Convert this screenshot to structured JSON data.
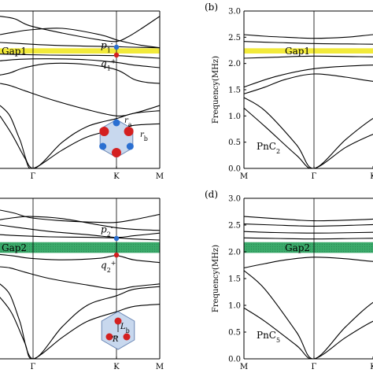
{
  "chart_data": [
    {
      "panel": "a",
      "type": "line",
      "panel_label": "",
      "x_ticks": [
        "Γ",
        "K",
        "M"
      ],
      "ylim": [
        0,
        3.0
      ],
      "gap": {
        "label": "Gap1",
        "from": 2.19,
        "to": 2.29,
        "color": "#f2ea3a"
      },
      "annotations": [
        {
          "text": "p",
          "sup": "-",
          "sub": "1",
          "k": 0.667,
          "f": 2.35
        },
        {
          "text": "q",
          "sup": "+",
          "sub": "1",
          "k": 0.667,
          "f": 2.0
        }
      ],
      "points": [
        {
          "k": 0.667,
          "f": 2.31,
          "color": "#2a6fd1"
        },
        {
          "k": 0.667,
          "f": 2.16,
          "color": "#d42020"
        }
      ],
      "inset": {
        "kind": "hexagon-dimers",
        "labels": [
          "r",
          "r"
        ],
        "label_subs": [
          "a",
          "b"
        ]
      },
      "series": [
        {
          "x": [
            0,
            0.15,
            0.3,
            0.45,
            0.6,
            0.667,
            0.75,
            0.85,
            1.0
          ],
          "y": [
            2.9,
            2.85,
            2.72,
            2.58,
            2.45,
            2.42,
            2.5,
            2.65,
            2.9
          ]
        },
        {
          "x": [
            0,
            0.15,
            0.3,
            0.45,
            0.6,
            0.667,
            0.75,
            0.85,
            1.0
          ],
          "y": [
            2.55,
            2.6,
            2.64,
            2.67,
            2.55,
            2.45,
            2.4,
            2.35,
            2.3
          ]
        },
        {
          "x": [
            0,
            0.2,
            0.4,
            0.55,
            0.667,
            0.8,
            1.0
          ],
          "y": [
            2.4,
            2.38,
            2.35,
            2.33,
            2.32,
            2.31,
            2.3
          ]
        },
        {
          "x": [
            0,
            0.2,
            0.4,
            0.55,
            0.667,
            0.8,
            1.0
          ],
          "y": [
            2.18,
            2.17,
            2.16,
            2.155,
            2.15,
            2.13,
            2.1
          ]
        },
        {
          "x": [
            0,
            0.2,
            0.4,
            0.55,
            0.667,
            0.8,
            1.0
          ],
          "y": [
            2.05,
            2.08,
            2.09,
            2.07,
            2.02,
            1.97,
            1.92
          ]
        },
        {
          "x": [
            0,
            0.1,
            0.25,
            0.4,
            0.55,
            0.667,
            0.8,
            0.9,
            1.0
          ],
          "y": [
            1.78,
            1.82,
            1.92,
            2.0,
            1.98,
            1.88,
            1.7,
            1.64,
            1.62
          ]
        },
        {
          "x": [
            0,
            0.1,
            0.25,
            0.4,
            0.55,
            0.667,
            0.8,
            0.9,
            1.0
          ],
          "y": [
            1.62,
            1.58,
            1.48,
            1.32,
            1.12,
            1.0,
            1.05,
            1.12,
            1.2
          ]
        },
        {
          "x": [
            0,
            0.1,
            0.2,
            0.333,
            0.45,
            0.55,
            0.667,
            0.8,
            1.0
          ],
          "y": [
            1.2,
            1.0,
            0.55,
            0.0,
            0.5,
            0.8,
            0.95,
            1.05,
            1.1
          ]
        },
        {
          "x": [
            0,
            0.12,
            0.25,
            0.333,
            0.45,
            0.55,
            0.667,
            0.8,
            1.0
          ],
          "y": [
            1.0,
            0.65,
            0.2,
            0.0,
            0.35,
            0.6,
            0.75,
            0.82,
            0.85
          ]
        }
      ]
    },
    {
      "panel": "b",
      "type": "line",
      "panel_label": "(b)",
      "ylabel": "Frequency(MHz)",
      "x_ticks": [
        "M",
        "Γ",
        "K"
      ],
      "yticks": [
        "0.0",
        "0.5",
        "1.0",
        "1.5",
        "2.0",
        "2.5",
        "3.0"
      ],
      "ylim": [
        0,
        3.0
      ],
      "gap": {
        "label": "Gap1",
        "from": 2.19,
        "to": 2.29,
        "color": "#f2ea3a"
      },
      "structure_label": {
        "text": "PnC",
        "sub": "2"
      },
      "points": [
        {
          "k": 0.98,
          "f": 0.75,
          "color": "#2a6fd1"
        }
      ],
      "series": [
        {
          "x": [
            0,
            0.1,
            0.2,
            0.333,
            0.45,
            0.55,
            0.667
          ],
          "y": [
            2.55,
            2.52,
            2.5,
            2.48,
            2.5,
            2.55,
            2.6
          ]
        },
        {
          "x": [
            0,
            0.15,
            0.333,
            0.5,
            0.667
          ],
          "y": [
            2.42,
            2.4,
            2.38,
            2.37,
            2.36
          ]
        },
        {
          "x": [
            0,
            0.15,
            0.333,
            0.5,
            0.667
          ],
          "y": [
            2.1,
            2.12,
            2.14,
            2.13,
            2.12
          ]
        },
        {
          "x": [
            0,
            0.15,
            0.333,
            0.5,
            0.667
          ],
          "y": [
            1.55,
            1.75,
            1.9,
            1.96,
            1.98
          ]
        },
        {
          "x": [
            0,
            0.1,
            0.2,
            0.333,
            0.45,
            0.55,
            0.667
          ],
          "y": [
            1.42,
            1.55,
            1.7,
            1.8,
            1.74,
            1.66,
            1.62
          ]
        },
        {
          "x": [
            0,
            0.1,
            0.25,
            0.333,
            0.45,
            0.55,
            0.667
          ],
          "y": [
            1.35,
            1.1,
            0.45,
            0.0,
            0.55,
            0.95,
            1.3
          ]
        },
        {
          "x": [
            0,
            0.1,
            0.25,
            0.333,
            0.45,
            0.55,
            0.667
          ],
          "y": [
            1.15,
            0.8,
            0.25,
            0.0,
            0.4,
            0.65,
            0.9
          ]
        }
      ]
    },
    {
      "panel": "c",
      "type": "line",
      "panel_label": "",
      "x_ticks": [
        "Γ",
        "K",
        "M"
      ],
      "ylim": [
        0,
        3.0
      ],
      "gap": {
        "label": "Gap2",
        "from": 1.98,
        "to": 2.18,
        "color": "#3aaa6a"
      },
      "annotations": [
        {
          "text": "p",
          "sup": "-",
          "sub": "2",
          "k": 0.667,
          "f": 2.42
        },
        {
          "text": "q",
          "sup": "+",
          "sub": "2",
          "k": 0.667,
          "f": 1.75
        }
      ],
      "points": [
        {
          "k": 0.667,
          "f": 2.25,
          "color": "#2a6fd1"
        },
        {
          "k": 0.667,
          "f": 1.94,
          "color": "#d42020"
        }
      ],
      "inset": {
        "kind": "hexagon-trimer",
        "labels": [
          "L",
          "R"
        ],
        "label_subs": [
          "b",
          ""
        ]
      },
      "series": [
        {
          "x": [
            0,
            0.15,
            0.3,
            0.45,
            0.6,
            0.667,
            0.8,
            1.0
          ],
          "y": [
            2.78,
            2.72,
            2.64,
            2.58,
            2.55,
            2.55,
            2.6,
            2.7
          ]
        },
        {
          "x": [
            0,
            0.15,
            0.3,
            0.45,
            0.6,
            0.667,
            0.8,
            1.0
          ],
          "y": [
            2.6,
            2.64,
            2.66,
            2.62,
            2.5,
            2.45,
            2.42,
            2.4
          ]
        },
        {
          "x": [
            0,
            0.2,
            0.4,
            0.55,
            0.667,
            0.8,
            1.0
          ],
          "y": [
            2.5,
            2.45,
            2.38,
            2.32,
            2.27,
            2.3,
            2.35
          ]
        },
        {
          "x": [
            0,
            0.2,
            0.4,
            0.55,
            0.667,
            0.8,
            1.0
          ],
          "y": [
            2.32,
            2.3,
            2.28,
            2.27,
            2.26,
            2.24,
            2.22
          ]
        },
        {
          "x": [
            0,
            0.15,
            0.3,
            0.45,
            0.6,
            0.667,
            0.8,
            1.0
          ],
          "y": [
            1.95,
            1.92,
            1.88,
            1.85,
            1.88,
            1.93,
            1.85,
            1.8
          ]
        },
        {
          "x": [
            0,
            0.1,
            0.25,
            0.4,
            0.55,
            0.667,
            0.8,
            1.0
          ],
          "y": [
            1.72,
            1.7,
            1.62,
            1.5,
            1.38,
            1.3,
            1.35,
            1.4
          ]
        },
        {
          "x": [
            0,
            0.1,
            0.2,
            0.333,
            0.45,
            0.55,
            0.667,
            0.8,
            1.0
          ],
          "y": [
            1.4,
            1.2,
            0.7,
            0.0,
            0.6,
            1.0,
            1.18,
            1.3,
            1.35
          ]
        },
        {
          "x": [
            0,
            0.12,
            0.25,
            0.333,
            0.45,
            0.55,
            0.667,
            0.8,
            1.0
          ],
          "y": [
            1.15,
            0.85,
            0.3,
            0.0,
            0.4,
            0.7,
            0.88,
            0.98,
            1.02
          ]
        }
      ]
    },
    {
      "panel": "d",
      "type": "line",
      "panel_label": "(d)",
      "ylabel": "Frequency(MHz)",
      "x_ticks": [
        "M",
        "Γ",
        "K"
      ],
      "yticks": [
        "0.0",
        "0.5",
        "1.0",
        "1.5",
        "2.0",
        "2.5",
        "3.0"
      ],
      "ylim": [
        0,
        3.0
      ],
      "gap": {
        "label": "Gap2",
        "from": 1.98,
        "to": 2.18,
        "color": "#3aaa6a"
      },
      "structure_label": {
        "text": "PnC",
        "sub": "5"
      },
      "series": [
        {
          "x": [
            0,
            0.15,
            0.333,
            0.5,
            0.667
          ],
          "y": [
            2.66,
            2.62,
            2.58,
            2.6,
            2.64
          ]
        },
        {
          "x": [
            0,
            0.15,
            0.333,
            0.5,
            0.667
          ],
          "y": [
            2.52,
            2.5,
            2.48,
            2.5,
            2.53
          ]
        },
        {
          "x": [
            0,
            0.15,
            0.333,
            0.5,
            0.667
          ],
          "y": [
            2.38,
            2.36,
            2.35,
            2.36,
            2.38
          ]
        },
        {
          "x": [
            0,
            0.15,
            0.333,
            0.5,
            0.667
          ],
          "y": [
            2.26,
            2.25,
            2.24,
            2.25,
            2.26
          ]
        },
        {
          "x": [
            0,
            0.1,
            0.2,
            0.333,
            0.45,
            0.55,
            0.667
          ],
          "y": [
            1.7,
            1.78,
            1.85,
            1.9,
            1.87,
            1.82,
            1.8
          ]
        },
        {
          "x": [
            0,
            0.1,
            0.25,
            0.333,
            0.45,
            0.55,
            0.667
          ],
          "y": [
            1.65,
            1.3,
            0.5,
            0.0,
            0.6,
            1.05,
            1.4
          ]
        },
        {
          "x": [
            0,
            0.1,
            0.25,
            0.333,
            0.45,
            0.55,
            0.667
          ],
          "y": [
            0.95,
            0.7,
            0.25,
            0.0,
            0.4,
            0.7,
            0.95
          ]
        }
      ]
    }
  ]
}
